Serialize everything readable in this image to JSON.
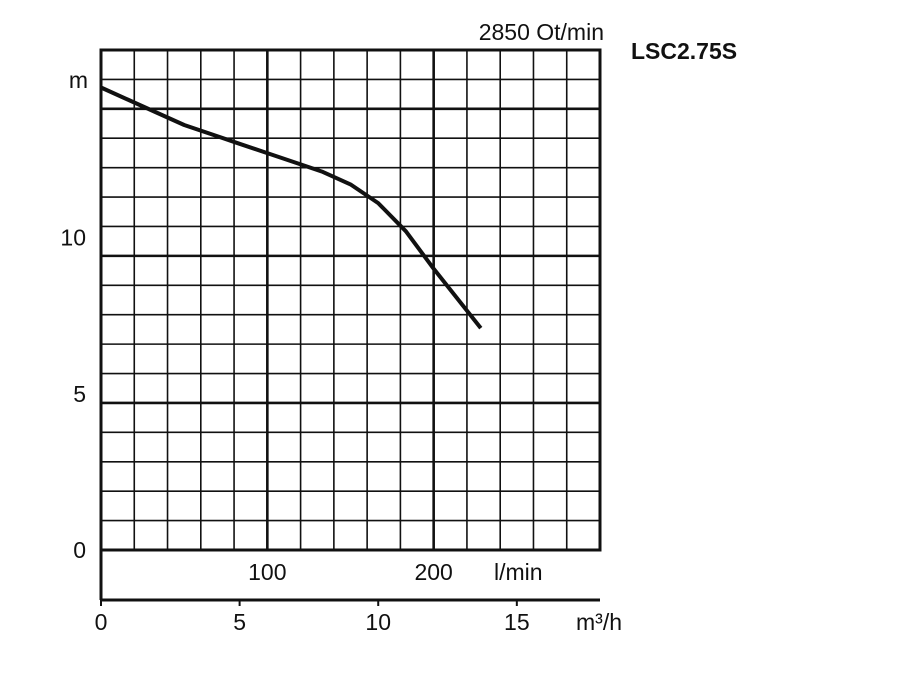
{
  "chart_data": {
    "type": "line",
    "title": "LSC2.75S",
    "subtitle": "2850 Ot/min",
    "ylabel": "m",
    "xlabel": "m³/h",
    "x2label": "l/min",
    "xlim": [
      0,
      18
    ],
    "ylim": [
      0,
      16
    ],
    "x_ticks": [
      0,
      5,
      10,
      15
    ],
    "y_ticks": [
      0,
      5,
      10
    ],
    "x2_ticks": [
      100,
      200
    ],
    "grid": true,
    "series": [
      {
        "x": [
          0,
          1,
          2,
          3,
          4,
          5,
          6,
          7,
          8,
          9,
          10,
          11,
          12,
          13.7
        ],
        "y": [
          14.8,
          14.4,
          14.0,
          13.6,
          13.3,
          13.0,
          12.7,
          12.4,
          12.1,
          11.7,
          11.1,
          10.2,
          9.0,
          7.1
        ]
      }
    ],
    "colors": {
      "line": "#111111",
      "grid": "#111111",
      "background": "#ffffff"
    }
  }
}
